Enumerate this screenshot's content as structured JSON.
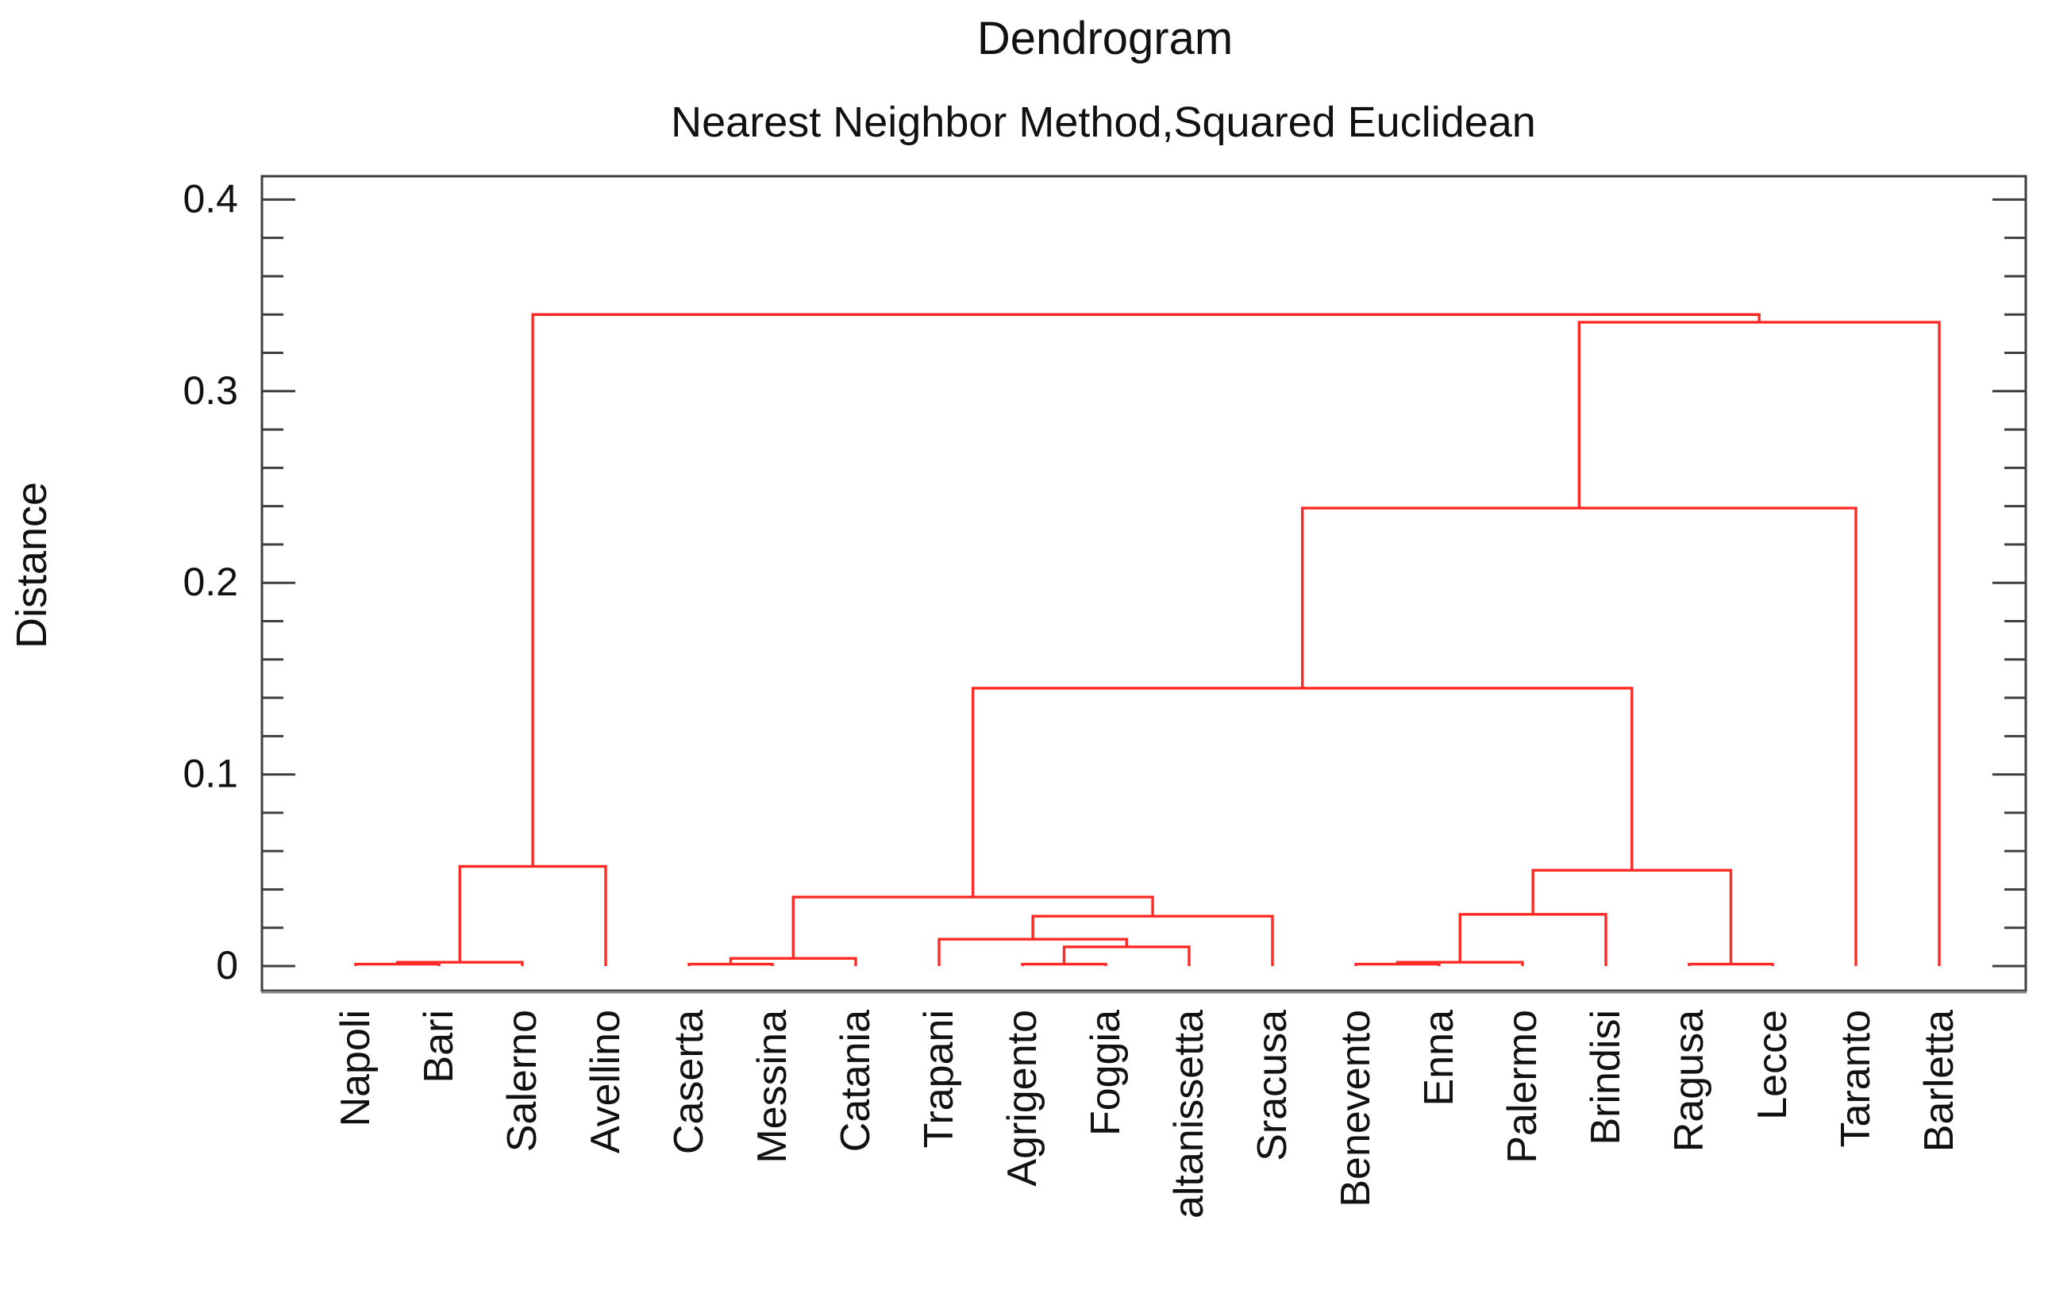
{
  "header": {
    "title": "Dendrogram",
    "subtitle": "Nearest Neighbor Method,Squared Euclidean"
  },
  "chart_data": {
    "type": "dendrogram",
    "title": "Dendrogram",
    "subtitle": "Nearest Neighbor Method,Squared Euclidean",
    "ylabel": "Distance",
    "line_color": "#ff2a26",
    "axis_color": "#3f3f3f",
    "label_color": "#111111",
    "grid": "off",
    "legend": "none",
    "ylim": [
      0,
      0.4
    ],
    "yticks": [
      0,
      0.1,
      0.2,
      0.3,
      0.4
    ],
    "ytick_labels": [
      "0",
      "0.1",
      "0.2",
      "0.3",
      "0.4"
    ],
    "minor_tick_step": 0.02,
    "leaves": [
      "Napoli",
      "Bari",
      "Salerno",
      "Avellino",
      "Caserta",
      "Messina",
      "Catania",
      "Trapani",
      "Agrigento",
      "Foggia",
      "altanissetta",
      "Sracusa",
      "Benevento",
      "Enna",
      "Palermo",
      "Brindisi",
      "Ragusa",
      "Lecce",
      "Taranto",
      "Barletta"
    ],
    "merges": [
      {
        "id": "n1",
        "a": "Napoli",
        "b": "Bari",
        "height": 0.001
      },
      {
        "id": "n2",
        "a": "n1",
        "b": "Salerno",
        "height": 0.002
      },
      {
        "id": "n3",
        "a": "n2",
        "b": "Avellino",
        "height": 0.052
      },
      {
        "id": "n4",
        "a": "Caserta",
        "b": "Messina",
        "height": 0.001
      },
      {
        "id": "n5",
        "a": "n4",
        "b": "Catania",
        "height": 0.004
      },
      {
        "id": "n6",
        "a": "Agrigento",
        "b": "Foggia",
        "height": 0.001
      },
      {
        "id": "n7",
        "a": "n6",
        "b": "altanissetta",
        "height": 0.01
      },
      {
        "id": "n8",
        "a": "Trapani",
        "b": "n7",
        "height": 0.014
      },
      {
        "id": "n9",
        "a": "n8",
        "b": "Sracusa",
        "height": 0.026
      },
      {
        "id": "n10",
        "a": "n5",
        "b": "n9",
        "height": 0.036
      },
      {
        "id": "n11",
        "a": "Benevento",
        "b": "Enna",
        "height": 0.001
      },
      {
        "id": "n12",
        "a": "n11",
        "b": "Palermo",
        "height": 0.002
      },
      {
        "id": "n13",
        "a": "n12",
        "b": "Brindisi",
        "height": 0.027
      },
      {
        "id": "n14",
        "a": "Ragusa",
        "b": "Lecce",
        "height": 0.001
      },
      {
        "id": "n15",
        "a": "n13",
        "b": "n14",
        "height": 0.05
      },
      {
        "id": "n16",
        "a": "n10",
        "b": "n15",
        "height": 0.145
      },
      {
        "id": "n17",
        "a": "n16",
        "b": "Taranto",
        "height": 0.239
      },
      {
        "id": "n18",
        "a": "n17",
        "b": "Barletta",
        "height": 0.336
      },
      {
        "id": "n19",
        "a": "n3",
        "b": "n18",
        "height": 0.34
      }
    ]
  }
}
